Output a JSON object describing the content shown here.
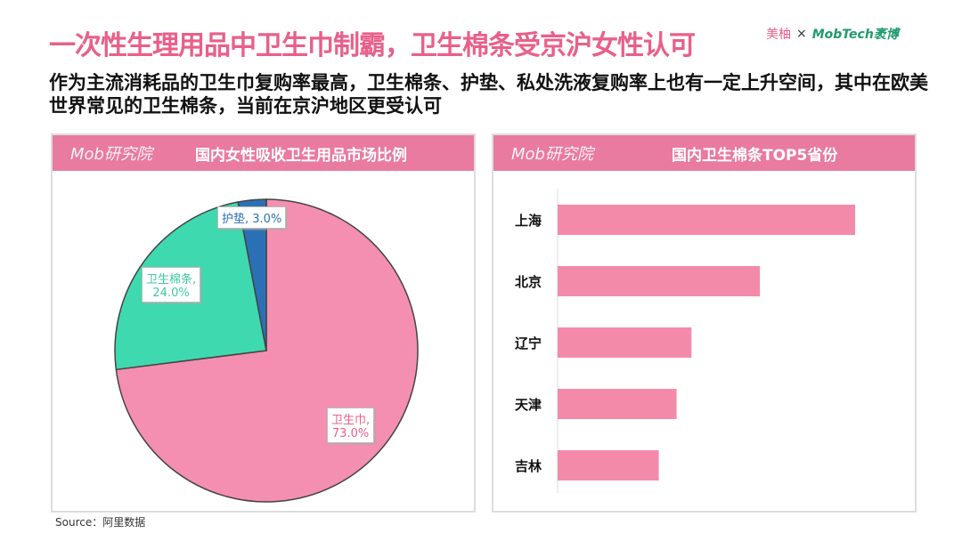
{
  "header": {
    "title": "一次性生理用品中卫生巾制霸，卫生棉条受京沪女性认可",
    "logo_left": "美柚",
    "logo_sep": "×",
    "logo_right": "MobTech袤博",
    "subtitle": "作为主流消耗品的卫生巾复购率最高，卫生棉条、护垫、私处洗液复购率上也有一定上升空间，其中在欧美世界常见的卫生棉条，当前在京沪地区更受认可"
  },
  "panel_brand": "Mob研究院",
  "source": "Source：阿里数据",
  "chart_data": [
    {
      "type": "pie",
      "title": "国内女性吸收卫生用品市场比例",
      "slices": [
        {
          "label": "卫生巾",
          "value": 73.0,
          "display": "卫生巾,\n73.0%",
          "color": "#f48fb1"
        },
        {
          "label": "卫生棉条",
          "value": 24.0,
          "display": "卫生棉条,\n24.0%",
          "color": "#3fd9b0"
        },
        {
          "label": "护垫",
          "value": 3.0,
          "display": "护垫, 3.0%",
          "color": "#2b70b5"
        }
      ],
      "start": "12 o'clock",
      "direction": "clockwise"
    },
    {
      "type": "bar",
      "orientation": "horizontal",
      "title": "国内卫生棉条TOP5省份",
      "categories": [
        "上海",
        "北京",
        "辽宁",
        "天津",
        "吉林"
      ],
      "values": [
        100,
        68,
        45,
        40,
        34
      ],
      "color": "#f48aaa",
      "value_labels": false
    }
  ]
}
